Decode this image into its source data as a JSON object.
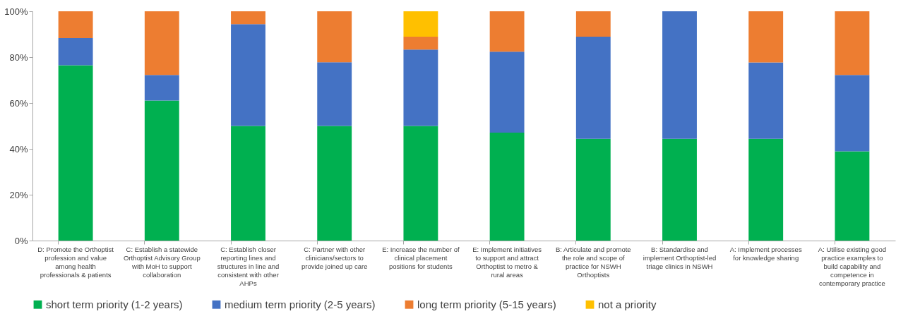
{
  "chart_data": {
    "type": "bar",
    "stacked": true,
    "categories": [
      "D: Promote the Orthoptist profession and value among health professionals & patients",
      "C: Establish a statewide Orthoptist Advisory Group with MoH to support collaboration",
      "C: Establish closer reporting lines and structures in line and consistent with other AHPs",
      "C: Partner with other clinicians/sectors to provide joined up care",
      "E: Increase the number of clinical placement positions for students",
      "E: Implement initiatives to support and attract Orthoptist to metro & rural areas",
      "B: Articulate and promote the role and scope of practice for NSWH Orthoptists",
      "B: Standardise and implement Orthoptist-led triage clinics in NSWH",
      "A: Implement processes for knowledge sharing",
      "A: Utilise existing good practice examples to build capability and competence in contemporary practice"
    ],
    "series": [
      {
        "name": "short term priority (1-2 years)",
        "color": "#00b050",
        "values": [
          76.5,
          61.1,
          50,
          50,
          50,
          47.1,
          44.4,
          44.4,
          44.4,
          38.9
        ]
      },
      {
        "name": "medium term priority (2-5 years)",
        "color": "#4472c4",
        "values": [
          11.8,
          11.1,
          44.4,
          27.8,
          33.3,
          35.3,
          44.5,
          55.6,
          33.3,
          33.3
        ]
      },
      {
        "name": "long term priority (5-15 years)",
        "color": "#ed7d31",
        "values": [
          11.7,
          27.8,
          5.6,
          22.2,
          5.6,
          17.6,
          11.1,
          null,
          22.3,
          27.8
        ]
      },
      {
        "name": "not a priority",
        "color": "#ffc000",
        "values": [
          null,
          null,
          null,
          null,
          11.1,
          null,
          null,
          null,
          null,
          null
        ]
      }
    ],
    "ylim": [
      0,
      100
    ],
    "yticks": [
      {
        "value": 0,
        "label": "0%"
      },
      {
        "value": 20,
        "label": "20%"
      },
      {
        "value": 40,
        "label": "40%"
      },
      {
        "value": 60,
        "label": "60%"
      },
      {
        "value": 80,
        "label": "80%"
      },
      {
        "value": 100,
        "label": "100%"
      }
    ],
    "legend": "bottom"
  }
}
